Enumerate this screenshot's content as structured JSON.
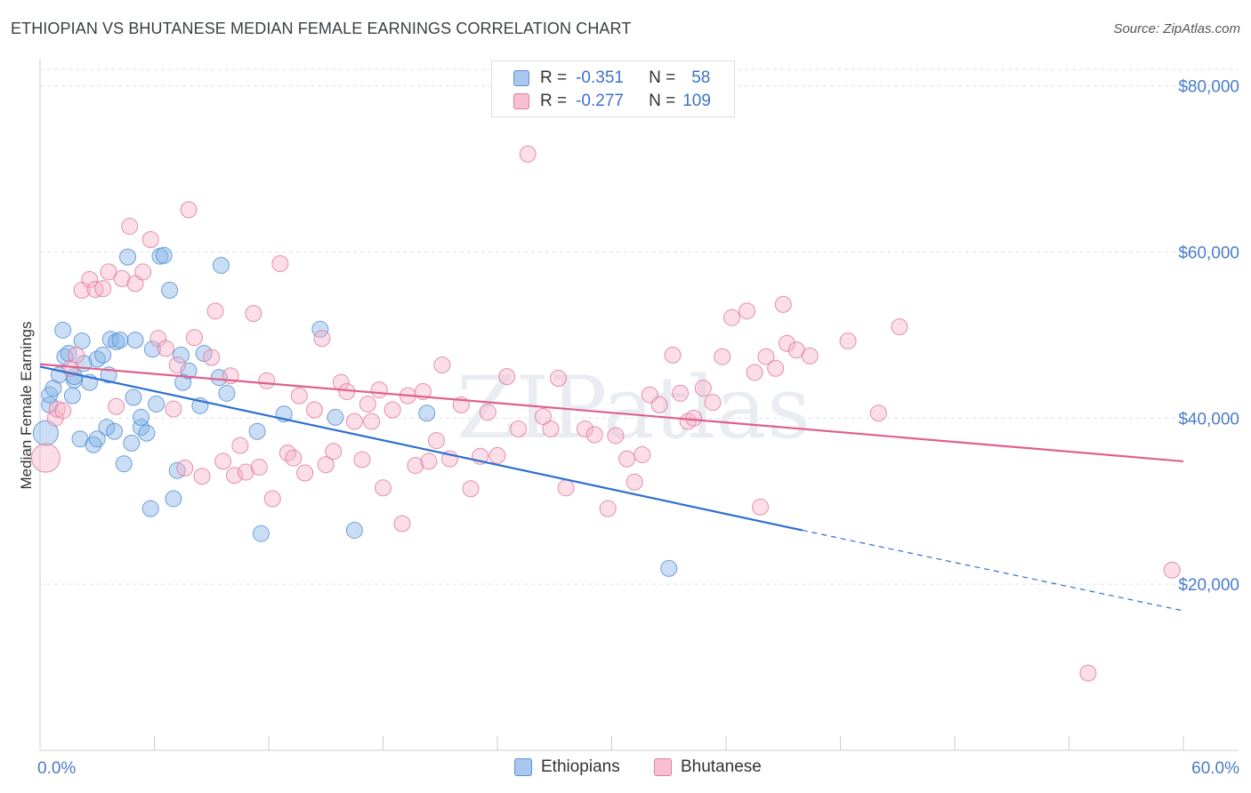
{
  "title": "ETHIOPIAN VS BHUTANESE MEDIAN FEMALE EARNINGS CORRELATION CHART",
  "source": "Source: ZipAtlas.com",
  "watermark": "ZIPatlas",
  "legend": {
    "rows": [
      {
        "r_label": "R =",
        "r_value": "-0.351",
        "n_label": "N =",
        "n_value": "58",
        "color": "#a8c8f0",
        "border": "#5b8fd6"
      },
      {
        "r_label": "R =",
        "r_value": "-0.277",
        "n_label": "N =",
        "n_value": "109",
        "color": "#f8c0d2",
        "border": "#e07ca0"
      }
    ]
  },
  "bottom_legend": [
    {
      "label": "Ethiopians",
      "color": "#a8c8f0",
      "border": "#5b8fd6"
    },
    {
      "label": "Bhutanese",
      "color": "#f8c0d2",
      "border": "#e07ca0"
    }
  ],
  "chart_data": {
    "type": "scatter",
    "title": "ETHIOPIAN VS BHUTANESE MEDIAN FEMALE EARNINGS CORRELATION CHART",
    "xlabel": "",
    "ylabel": "Median Female Earnings",
    "xlim": [
      0,
      60
    ],
    "ylim": [
      0,
      82000
    ],
    "x_tick_labels": [
      {
        "value": 0,
        "label": "0.0%"
      },
      {
        "value": 60,
        "label": "60.0%"
      }
    ],
    "y_ticks": [
      {
        "value": 20000,
        "label": "$20,000"
      },
      {
        "value": 40000,
        "label": "$40,000"
      },
      {
        "value": 60000,
        "label": "$60,000"
      },
      {
        "value": 80000,
        "label": "$80,000"
      }
    ],
    "series": [
      {
        "name": "Ethiopians",
        "color": "#7fb0e8",
        "stroke": "#5b8fd6",
        "trend": {
          "x0": 0,
          "y0": 46200,
          "x1": 40,
          "y1": 26500,
          "dash_to_x": 60,
          "dash_to_y": 16800,
          "color": "#2f6fd0"
        },
        "points": [
          [
            0.3,
            38200,
            14
          ],
          [
            0.5,
            41600,
            9
          ],
          [
            0.5,
            42800,
            9
          ],
          [
            0.7,
            43600,
            9
          ],
          [
            1.0,
            45200,
            9
          ],
          [
            1.2,
            50600,
            9
          ],
          [
            1.3,
            47400,
            9
          ],
          [
            1.5,
            47800,
            9
          ],
          [
            1.7,
            42700,
            9
          ],
          [
            1.8,
            44600,
            9
          ],
          [
            1.8,
            45000,
            9
          ],
          [
            2.1,
            37500,
            9
          ],
          [
            2.2,
            49300,
            9
          ],
          [
            2.3,
            46600,
            9
          ],
          [
            2.6,
            44300,
            9
          ],
          [
            2.8,
            36800,
            9
          ],
          [
            3.0,
            37500,
            9
          ],
          [
            3.0,
            47100,
            9
          ],
          [
            3.3,
            47600,
            9
          ],
          [
            3.5,
            38900,
            9
          ],
          [
            3.6,
            45200,
            9
          ],
          [
            3.7,
            49500,
            9
          ],
          [
            3.9,
            38400,
            9
          ],
          [
            4.0,
            49200,
            9
          ],
          [
            4.2,
            49400,
            9
          ],
          [
            4.4,
            34500,
            9
          ],
          [
            4.6,
            59400,
            9
          ],
          [
            4.8,
            37000,
            9
          ],
          [
            4.9,
            42500,
            9
          ],
          [
            5.0,
            49400,
            9
          ],
          [
            5.3,
            38900,
            9
          ],
          [
            5.3,
            40100,
            9
          ],
          [
            5.6,
            38200,
            9
          ],
          [
            5.8,
            29100,
            9
          ],
          [
            5.9,
            48300,
            9
          ],
          [
            6.1,
            41700,
            9
          ],
          [
            6.3,
            59500,
            9
          ],
          [
            6.5,
            59600,
            9
          ],
          [
            6.8,
            55400,
            9
          ],
          [
            7.0,
            30300,
            9
          ],
          [
            7.2,
            33700,
            9
          ],
          [
            7.4,
            47600,
            9
          ],
          [
            7.5,
            44300,
            9
          ],
          [
            7.8,
            45700,
            9
          ],
          [
            8.4,
            41500,
            9
          ],
          [
            8.6,
            47800,
            9
          ],
          [
            9.4,
            44900,
            9
          ],
          [
            9.5,
            58400,
            9
          ],
          [
            9.8,
            43000,
            9
          ],
          [
            11.4,
            38400,
            9
          ],
          [
            11.6,
            26100,
            9
          ],
          [
            12.8,
            40500,
            9
          ],
          [
            14.7,
            50700,
            9
          ],
          [
            15.5,
            40100,
            9
          ],
          [
            16.5,
            26500,
            9
          ],
          [
            20.3,
            40600,
            9
          ],
          [
            33.0,
            21900,
            9
          ]
        ]
      },
      {
        "name": "Bhutanese",
        "color": "#f5b0c8",
        "stroke": "#e07ca0",
        "trend": {
          "x0": 0,
          "y0": 46500,
          "x1": 60,
          "y1": 34800,
          "color": "#e0608c"
        },
        "points": [
          [
            0.3,
            35200,
            16
          ],
          [
            0.8,
            40000,
            9
          ],
          [
            0.9,
            41100,
            9
          ],
          [
            1.2,
            40900,
            9
          ],
          [
            1.6,
            46000,
            9
          ],
          [
            1.9,
            47600,
            9
          ],
          [
            2.2,
            55400,
            9
          ],
          [
            2.6,
            56700,
            9
          ],
          [
            2.9,
            55500,
            9
          ],
          [
            3.3,
            55600,
            9
          ],
          [
            3.6,
            57600,
            9
          ],
          [
            4.0,
            41400,
            9
          ],
          [
            4.3,
            56800,
            9
          ],
          [
            4.7,
            63100,
            9
          ],
          [
            5.0,
            56200,
            9
          ],
          [
            5.4,
            57600,
            9
          ],
          [
            5.8,
            61500,
            9
          ],
          [
            6.2,
            49600,
            9
          ],
          [
            6.6,
            48400,
            9
          ],
          [
            7.0,
            41100,
            9
          ],
          [
            7.2,
            46400,
            9
          ],
          [
            7.6,
            34000,
            9
          ],
          [
            7.8,
            65100,
            9
          ],
          [
            8.1,
            49700,
            9
          ],
          [
            8.5,
            33000,
            9
          ],
          [
            9.0,
            47300,
            9
          ],
          [
            9.2,
            52900,
            9
          ],
          [
            9.6,
            34800,
            9
          ],
          [
            10.0,
            45100,
            9
          ],
          [
            10.2,
            33100,
            9
          ],
          [
            10.5,
            36700,
            9
          ],
          [
            10.8,
            33500,
            9
          ],
          [
            11.2,
            52600,
            9
          ],
          [
            11.5,
            34100,
            9
          ],
          [
            11.9,
            44500,
            9
          ],
          [
            12.2,
            30300,
            9
          ],
          [
            12.6,
            58600,
            9
          ],
          [
            13.0,
            35800,
            9
          ],
          [
            13.3,
            35200,
            9
          ],
          [
            13.6,
            42700,
            9
          ],
          [
            13.9,
            33400,
            9
          ],
          [
            14.4,
            41000,
            9
          ],
          [
            14.8,
            49600,
            9
          ],
          [
            15.0,
            34400,
            9
          ],
          [
            15.4,
            36000,
            9
          ],
          [
            15.8,
            44300,
            9
          ],
          [
            16.1,
            43200,
            9
          ],
          [
            16.5,
            39600,
            9
          ],
          [
            16.9,
            35000,
            9
          ],
          [
            17.2,
            41700,
            9
          ],
          [
            17.4,
            39600,
            9
          ],
          [
            17.8,
            43400,
            9
          ],
          [
            18.0,
            31600,
            9
          ],
          [
            18.5,
            41000,
            9
          ],
          [
            19.0,
            27300,
            9
          ],
          [
            19.3,
            42700,
            9
          ],
          [
            19.7,
            34300,
            9
          ],
          [
            20.1,
            43200,
            9
          ],
          [
            20.4,
            34800,
            9
          ],
          [
            20.8,
            37300,
            9
          ],
          [
            21.1,
            46400,
            9
          ],
          [
            21.5,
            35100,
            9
          ],
          [
            22.1,
            41600,
            9
          ],
          [
            22.6,
            31500,
            9
          ],
          [
            23.1,
            35400,
            9
          ],
          [
            23.5,
            40700,
            9
          ],
          [
            24.0,
            35500,
            9
          ],
          [
            24.5,
            45000,
            9
          ],
          [
            25.1,
            38700,
            9
          ],
          [
            25.6,
            71800,
            9
          ],
          [
            26.4,
            40200,
            9
          ],
          [
            26.8,
            38700,
            9
          ],
          [
            27.2,
            44800,
            9
          ],
          [
            27.6,
            31600,
            9
          ],
          [
            28.6,
            38700,
            9
          ],
          [
            29.1,
            38000,
            9
          ],
          [
            29.8,
            29100,
            9
          ],
          [
            30.2,
            37900,
            9
          ],
          [
            30.8,
            35100,
            9
          ],
          [
            31.2,
            32300,
            9
          ],
          [
            31.6,
            35600,
            9
          ],
          [
            32.0,
            42800,
            9
          ],
          [
            32.5,
            41600,
            9
          ],
          [
            33.2,
            47600,
            9
          ],
          [
            33.6,
            43000,
            9
          ],
          [
            34.0,
            39600,
            9
          ],
          [
            34.3,
            40000,
            9
          ],
          [
            34.8,
            43600,
            9
          ],
          [
            35.3,
            41900,
            9
          ],
          [
            35.8,
            47400,
            9
          ],
          [
            36.3,
            52100,
            9
          ],
          [
            37.1,
            52900,
            9
          ],
          [
            37.5,
            45500,
            9
          ],
          [
            37.8,
            29300,
            9
          ],
          [
            38.1,
            47400,
            9
          ],
          [
            38.6,
            46000,
            9
          ],
          [
            39.0,
            53700,
            9
          ],
          [
            39.2,
            49000,
            9
          ],
          [
            39.7,
            48200,
            9
          ],
          [
            40.4,
            47500,
            9
          ],
          [
            42.4,
            49300,
            9
          ],
          [
            44.0,
            40600,
            9
          ],
          [
            45.1,
            51000,
            9
          ],
          [
            55.0,
            9300,
            9
          ],
          [
            59.4,
            21700,
            9
          ]
        ]
      }
    ]
  }
}
